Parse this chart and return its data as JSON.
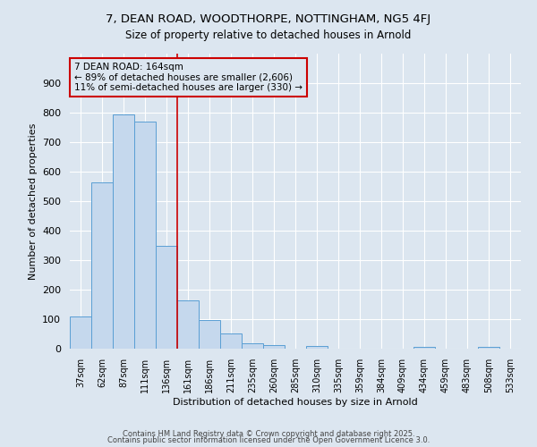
{
  "title": "7, DEAN ROAD, WOODTHORPE, NOTTINGHAM, NG5 4FJ",
  "subtitle": "Size of property relative to detached houses in Arnold",
  "xlabel": "Distribution of detached houses by size in Arnold",
  "ylabel": "Number of detached properties",
  "bar_color": "#c5d8ed",
  "bar_edge_color": "#5a9fd4",
  "background_color": "#dce6f0",
  "grid_color": "#ffffff",
  "categories": [
    "37sqm",
    "62sqm",
    "87sqm",
    "111sqm",
    "136sqm",
    "161sqm",
    "186sqm",
    "211sqm",
    "235sqm",
    "260sqm",
    "285sqm",
    "310sqm",
    "335sqm",
    "359sqm",
    "384sqm",
    "409sqm",
    "434sqm",
    "459sqm",
    "483sqm",
    "508sqm",
    "533sqm"
  ],
  "values": [
    110,
    565,
    795,
    770,
    350,
    165,
    97,
    52,
    17,
    12,
    0,
    8,
    0,
    0,
    0,
    0,
    7,
    0,
    0,
    7,
    0
  ],
  "vline_x": 5,
  "vline_color": "#cc0000",
  "annotation_title": "7 DEAN ROAD: 164sqm",
  "annotation_line1": "← 89% of detached houses are smaller (2,606)",
  "annotation_line2": "11% of semi-detached houses are larger (330) →",
  "annotation_box_color": "#cc0000",
  "ylim": [
    0,
    1000
  ],
  "yticks": [
    0,
    100,
    200,
    300,
    400,
    500,
    600,
    700,
    800,
    900,
    1000
  ],
  "footer1": "Contains HM Land Registry data © Crown copyright and database right 2025.",
  "footer2": "Contains public sector information licensed under the Open Government Licence 3.0."
}
